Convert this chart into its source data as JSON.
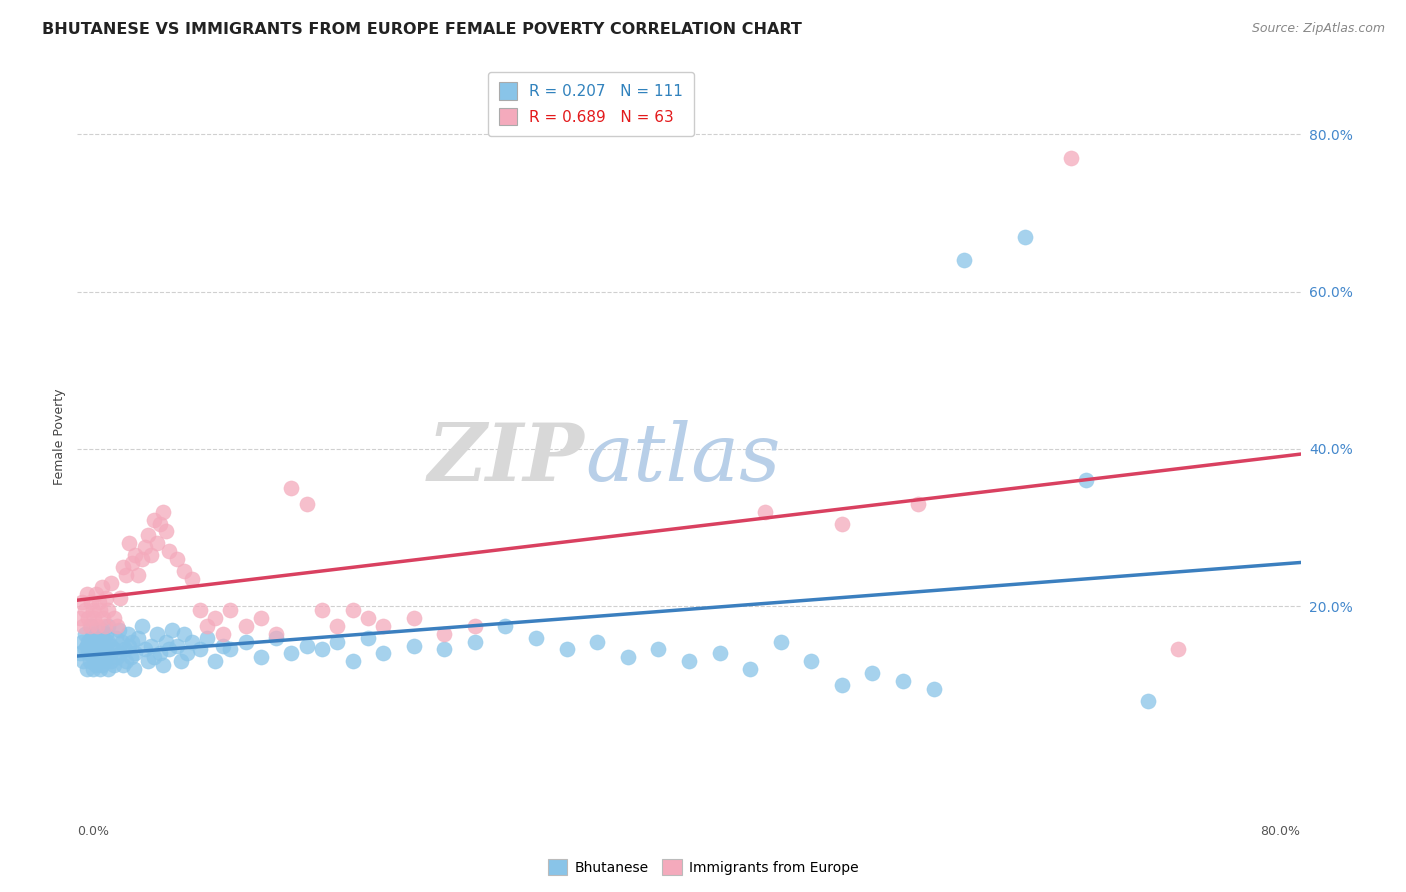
{
  "title": "BHUTANESE VS IMMIGRANTS FROM EUROPE FEMALE POVERTY CORRELATION CHART",
  "source": "Source: ZipAtlas.com",
  "ylabel": "Female Poverty",
  "right_ytick_vals": [
    0.8,
    0.6,
    0.4,
    0.2
  ],
  "xlim": [
    0.0,
    0.8
  ],
  "ylim": [
    -0.05,
    0.88
  ],
  "blue_color": "#89C4E8",
  "pink_color": "#F4AABC",
  "blue_line_color": "#3B7FBF",
  "pink_line_color": "#D94060",
  "background_color": "#ffffff",
  "grid_color": "#d0d0d0",
  "title_fontsize": 11.5,
  "source_fontsize": 9,
  "axis_label_fontsize": 9,
  "tick_fontsize": 9,
  "legend_fontsize": 10,
  "blue_scatter": [
    [
      0.002,
      0.14
    ],
    [
      0.003,
      0.155
    ],
    [
      0.004,
      0.13
    ],
    [
      0.005,
      0.145
    ],
    [
      0.005,
      0.165
    ],
    [
      0.006,
      0.12
    ],
    [
      0.006,
      0.15
    ],
    [
      0.007,
      0.14
    ],
    [
      0.007,
      0.155
    ],
    [
      0.008,
      0.13
    ],
    [
      0.008,
      0.145
    ],
    [
      0.009,
      0.16
    ],
    [
      0.009,
      0.175
    ],
    [
      0.01,
      0.12
    ],
    [
      0.01,
      0.135
    ],
    [
      0.01,
      0.15
    ],
    [
      0.01,
      0.165
    ],
    [
      0.011,
      0.14
    ],
    [
      0.011,
      0.155
    ],
    [
      0.012,
      0.125
    ],
    [
      0.012,
      0.145
    ],
    [
      0.013,
      0.13
    ],
    [
      0.013,
      0.16
    ],
    [
      0.014,
      0.135
    ],
    [
      0.014,
      0.15
    ],
    [
      0.015,
      0.12
    ],
    [
      0.015,
      0.14
    ],
    [
      0.015,
      0.155
    ],
    [
      0.016,
      0.17
    ],
    [
      0.016,
      0.125
    ],
    [
      0.017,
      0.145
    ],
    [
      0.017,
      0.16
    ],
    [
      0.018,
      0.13
    ],
    [
      0.018,
      0.15
    ],
    [
      0.019,
      0.135
    ],
    [
      0.019,
      0.165
    ],
    [
      0.02,
      0.12
    ],
    [
      0.02,
      0.14
    ],
    [
      0.02,
      0.155
    ],
    [
      0.02,
      0.175
    ],
    [
      0.022,
      0.13
    ],
    [
      0.022,
      0.15
    ],
    [
      0.024,
      0.125
    ],
    [
      0.024,
      0.145
    ],
    [
      0.025,
      0.16
    ],
    [
      0.026,
      0.135
    ],
    [
      0.027,
      0.17
    ],
    [
      0.028,
      0.14
    ],
    [
      0.029,
      0.155
    ],
    [
      0.03,
      0.125
    ],
    [
      0.031,
      0.145
    ],
    [
      0.032,
      0.13
    ],
    [
      0.033,
      0.165
    ],
    [
      0.034,
      0.15
    ],
    [
      0.035,
      0.135
    ],
    [
      0.036,
      0.155
    ],
    [
      0.037,
      0.12
    ],
    [
      0.038,
      0.14
    ],
    [
      0.04,
      0.16
    ],
    [
      0.042,
      0.175
    ],
    [
      0.044,
      0.145
    ],
    [
      0.046,
      0.13
    ],
    [
      0.048,
      0.15
    ],
    [
      0.05,
      0.135
    ],
    [
      0.052,
      0.165
    ],
    [
      0.054,
      0.14
    ],
    [
      0.056,
      0.125
    ],
    [
      0.058,
      0.155
    ],
    [
      0.06,
      0.145
    ],
    [
      0.062,
      0.17
    ],
    [
      0.065,
      0.15
    ],
    [
      0.068,
      0.13
    ],
    [
      0.07,
      0.165
    ],
    [
      0.072,
      0.14
    ],
    [
      0.075,
      0.155
    ],
    [
      0.08,
      0.145
    ],
    [
      0.085,
      0.16
    ],
    [
      0.09,
      0.13
    ],
    [
      0.095,
      0.15
    ],
    [
      0.1,
      0.145
    ],
    [
      0.11,
      0.155
    ],
    [
      0.12,
      0.135
    ],
    [
      0.13,
      0.16
    ],
    [
      0.14,
      0.14
    ],
    [
      0.15,
      0.15
    ],
    [
      0.16,
      0.145
    ],
    [
      0.17,
      0.155
    ],
    [
      0.18,
      0.13
    ],
    [
      0.19,
      0.16
    ],
    [
      0.2,
      0.14
    ],
    [
      0.22,
      0.15
    ],
    [
      0.24,
      0.145
    ],
    [
      0.26,
      0.155
    ],
    [
      0.28,
      0.175
    ],
    [
      0.3,
      0.16
    ],
    [
      0.32,
      0.145
    ],
    [
      0.34,
      0.155
    ],
    [
      0.36,
      0.135
    ],
    [
      0.38,
      0.145
    ],
    [
      0.4,
      0.13
    ],
    [
      0.42,
      0.14
    ],
    [
      0.44,
      0.12
    ],
    [
      0.46,
      0.155
    ],
    [
      0.48,
      0.13
    ],
    [
      0.5,
      0.1
    ],
    [
      0.52,
      0.115
    ],
    [
      0.54,
      0.105
    ],
    [
      0.56,
      0.095
    ],
    [
      0.58,
      0.64
    ],
    [
      0.62,
      0.67
    ],
    [
      0.66,
      0.36
    ],
    [
      0.7,
      0.08
    ]
  ],
  "pink_scatter": [
    [
      0.002,
      0.185
    ],
    [
      0.003,
      0.205
    ],
    [
      0.004,
      0.175
    ],
    [
      0.005,
      0.195
    ],
    [
      0.006,
      0.215
    ],
    [
      0.007,
      0.185
    ],
    [
      0.008,
      0.175
    ],
    [
      0.009,
      0.205
    ],
    [
      0.01,
      0.195
    ],
    [
      0.011,
      0.185
    ],
    [
      0.012,
      0.215
    ],
    [
      0.013,
      0.175
    ],
    [
      0.014,
      0.205
    ],
    [
      0.015,
      0.195
    ],
    [
      0.016,
      0.225
    ],
    [
      0.017,
      0.185
    ],
    [
      0.018,
      0.175
    ],
    [
      0.019,
      0.21
    ],
    [
      0.02,
      0.195
    ],
    [
      0.022,
      0.23
    ],
    [
      0.024,
      0.185
    ],
    [
      0.026,
      0.175
    ],
    [
      0.028,
      0.21
    ],
    [
      0.03,
      0.25
    ],
    [
      0.032,
      0.24
    ],
    [
      0.034,
      0.28
    ],
    [
      0.036,
      0.255
    ],
    [
      0.038,
      0.265
    ],
    [
      0.04,
      0.24
    ],
    [
      0.042,
      0.26
    ],
    [
      0.044,
      0.275
    ],
    [
      0.046,
      0.29
    ],
    [
      0.048,
      0.265
    ],
    [
      0.05,
      0.31
    ],
    [
      0.052,
      0.28
    ],
    [
      0.054,
      0.305
    ],
    [
      0.056,
      0.32
    ],
    [
      0.058,
      0.295
    ],
    [
      0.06,
      0.27
    ],
    [
      0.065,
      0.26
    ],
    [
      0.07,
      0.245
    ],
    [
      0.075,
      0.235
    ],
    [
      0.08,
      0.195
    ],
    [
      0.085,
      0.175
    ],
    [
      0.09,
      0.185
    ],
    [
      0.095,
      0.165
    ],
    [
      0.1,
      0.195
    ],
    [
      0.11,
      0.175
    ],
    [
      0.12,
      0.185
    ],
    [
      0.13,
      0.165
    ],
    [
      0.14,
      0.35
    ],
    [
      0.15,
      0.33
    ],
    [
      0.16,
      0.195
    ],
    [
      0.17,
      0.175
    ],
    [
      0.18,
      0.195
    ],
    [
      0.19,
      0.185
    ],
    [
      0.2,
      0.175
    ],
    [
      0.22,
      0.185
    ],
    [
      0.24,
      0.165
    ],
    [
      0.26,
      0.175
    ],
    [
      0.45,
      0.32
    ],
    [
      0.5,
      0.305
    ],
    [
      0.55,
      0.33
    ],
    [
      0.65,
      0.77
    ],
    [
      0.72,
      0.145
    ]
  ]
}
